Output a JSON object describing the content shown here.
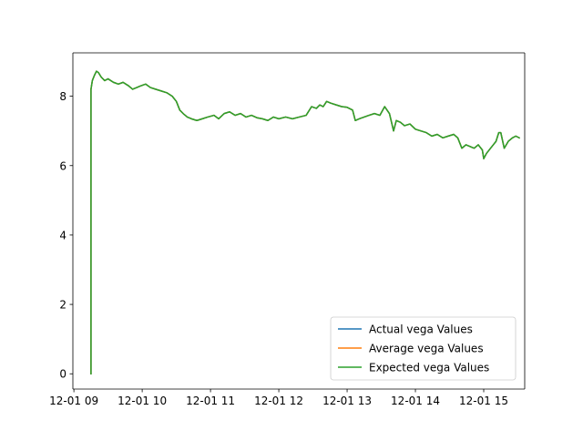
{
  "chart_data": {
    "type": "line",
    "title": "",
    "xlabel": "",
    "ylabel": "",
    "xlim": [
      8.985,
      15.6
    ],
    "ylim": [
      -0.44,
      9.25
    ],
    "x_ticks": [
      {
        "value": 9,
        "label": "12-01 09"
      },
      {
        "value": 10,
        "label": "12-01 10"
      },
      {
        "value": 11,
        "label": "12-01 11"
      },
      {
        "value": 12,
        "label": "12-01 12"
      },
      {
        "value": 13,
        "label": "12-01 13"
      },
      {
        "value": 14,
        "label": "12-01 14"
      },
      {
        "value": 15,
        "label": "12-01 15"
      }
    ],
    "y_ticks": [
      {
        "value": 0,
        "label": "0"
      },
      {
        "value": 2,
        "label": "2"
      },
      {
        "value": 4,
        "label": "4"
      },
      {
        "value": 6,
        "label": "6"
      },
      {
        "value": 8,
        "label": "8"
      }
    ],
    "grid": false,
    "legend_position": "lower-right",
    "x_unit_note_hidden": true,
    "x": [
      9.25,
      9.25,
      9.27,
      9.3,
      9.33,
      9.36,
      9.4,
      9.45,
      9.5,
      9.58,
      9.65,
      9.72,
      9.8,
      9.86,
      9.92,
      9.98,
      10.05,
      10.12,
      10.2,
      10.28,
      10.36,
      10.44,
      10.5,
      10.55,
      10.6,
      10.66,
      10.72,
      10.8,
      10.88,
      10.96,
      11.05,
      11.12,
      11.2,
      11.28,
      11.36,
      11.44,
      11.52,
      11.6,
      11.68,
      11.76,
      11.84,
      11.92,
      12.0,
      12.1,
      12.2,
      12.3,
      12.4,
      12.48,
      12.55,
      12.6,
      12.65,
      12.7,
      12.76,
      12.84,
      12.92,
      13.0,
      13.08,
      13.12,
      13.18,
      13.25,
      13.32,
      13.4,
      13.48,
      13.55,
      13.62,
      13.68,
      13.72,
      13.78,
      13.84,
      13.92,
      14.0,
      14.08,
      14.16,
      14.24,
      14.32,
      14.4,
      14.48,
      14.56,
      14.62,
      14.68,
      14.74,
      14.8,
      14.86,
      14.92,
      14.98,
      15.0,
      15.04,
      15.1,
      15.14,
      15.18,
      15.22,
      15.25,
      15.3,
      15.36,
      15.42,
      15.47,
      15.52
    ],
    "series": [
      {
        "name": "Actual vega Values",
        "color": "#1f77b4",
        "values": [
          0.0,
          8.2,
          8.45,
          8.6,
          8.72,
          8.68,
          8.55,
          8.45,
          8.5,
          8.4,
          8.35,
          8.4,
          8.3,
          8.2,
          8.25,
          8.3,
          8.35,
          8.25,
          8.2,
          8.15,
          8.1,
          8.0,
          7.85,
          7.6,
          7.5,
          7.4,
          7.35,
          7.3,
          7.35,
          7.4,
          7.45,
          7.35,
          7.5,
          7.55,
          7.45,
          7.5,
          7.4,
          7.45,
          7.38,
          7.35,
          7.3,
          7.4,
          7.35,
          7.4,
          7.35,
          7.4,
          7.45,
          7.7,
          7.65,
          7.75,
          7.7,
          7.85,
          7.8,
          7.75,
          7.7,
          7.68,
          7.6,
          7.3,
          7.35,
          7.4,
          7.45,
          7.5,
          7.45,
          7.7,
          7.5,
          7.0,
          7.3,
          7.25,
          7.15,
          7.2,
          7.05,
          7.0,
          6.95,
          6.85,
          6.9,
          6.8,
          6.85,
          6.9,
          6.8,
          6.5,
          6.6,
          6.55,
          6.5,
          6.6,
          6.45,
          6.2,
          6.35,
          6.5,
          6.6,
          6.7,
          6.95,
          6.95,
          6.5,
          6.7,
          6.8,
          6.85,
          6.8
        ]
      },
      {
        "name": "Average vega Values",
        "color": "#ff7f0e",
        "values": [
          0.0,
          8.2,
          8.45,
          8.6,
          8.72,
          8.68,
          8.55,
          8.45,
          8.5,
          8.4,
          8.35,
          8.4,
          8.3,
          8.2,
          8.25,
          8.3,
          8.35,
          8.25,
          8.2,
          8.15,
          8.1,
          8.0,
          7.85,
          7.6,
          7.5,
          7.4,
          7.35,
          7.3,
          7.35,
          7.4,
          7.45,
          7.35,
          7.5,
          7.55,
          7.45,
          7.5,
          7.4,
          7.45,
          7.38,
          7.35,
          7.3,
          7.4,
          7.35,
          7.4,
          7.35,
          7.4,
          7.45,
          7.7,
          7.65,
          7.75,
          7.7,
          7.85,
          7.8,
          7.75,
          7.7,
          7.68,
          7.6,
          7.3,
          7.35,
          7.4,
          7.45,
          7.5,
          7.45,
          7.7,
          7.5,
          7.0,
          7.3,
          7.25,
          7.15,
          7.2,
          7.05,
          7.0,
          6.95,
          6.85,
          6.9,
          6.8,
          6.85,
          6.9,
          6.8,
          6.5,
          6.6,
          6.55,
          6.5,
          6.6,
          6.45,
          6.2,
          6.35,
          6.5,
          6.6,
          6.7,
          6.95,
          6.95,
          6.5,
          6.7,
          6.8,
          6.85,
          6.8
        ]
      },
      {
        "name": "Expected vega Values",
        "color": "#2ca02c",
        "values": [
          0.0,
          8.2,
          8.45,
          8.6,
          8.72,
          8.68,
          8.55,
          8.45,
          8.5,
          8.4,
          8.35,
          8.4,
          8.3,
          8.2,
          8.25,
          8.3,
          8.35,
          8.25,
          8.2,
          8.15,
          8.1,
          8.0,
          7.85,
          7.6,
          7.5,
          7.4,
          7.35,
          7.3,
          7.35,
          7.4,
          7.45,
          7.35,
          7.5,
          7.55,
          7.45,
          7.5,
          7.4,
          7.45,
          7.38,
          7.35,
          7.3,
          7.4,
          7.35,
          7.4,
          7.35,
          7.4,
          7.45,
          7.7,
          7.65,
          7.75,
          7.7,
          7.85,
          7.8,
          7.75,
          7.7,
          7.68,
          7.6,
          7.3,
          7.35,
          7.4,
          7.45,
          7.5,
          7.45,
          7.7,
          7.5,
          7.0,
          7.3,
          7.25,
          7.15,
          7.2,
          7.05,
          7.0,
          6.95,
          6.85,
          6.9,
          6.8,
          6.85,
          6.9,
          6.8,
          6.5,
          6.6,
          6.55,
          6.5,
          6.6,
          6.45,
          6.2,
          6.35,
          6.5,
          6.6,
          6.7,
          6.95,
          6.95,
          6.5,
          6.7,
          6.8,
          6.85,
          6.8
        ]
      }
    ]
  }
}
